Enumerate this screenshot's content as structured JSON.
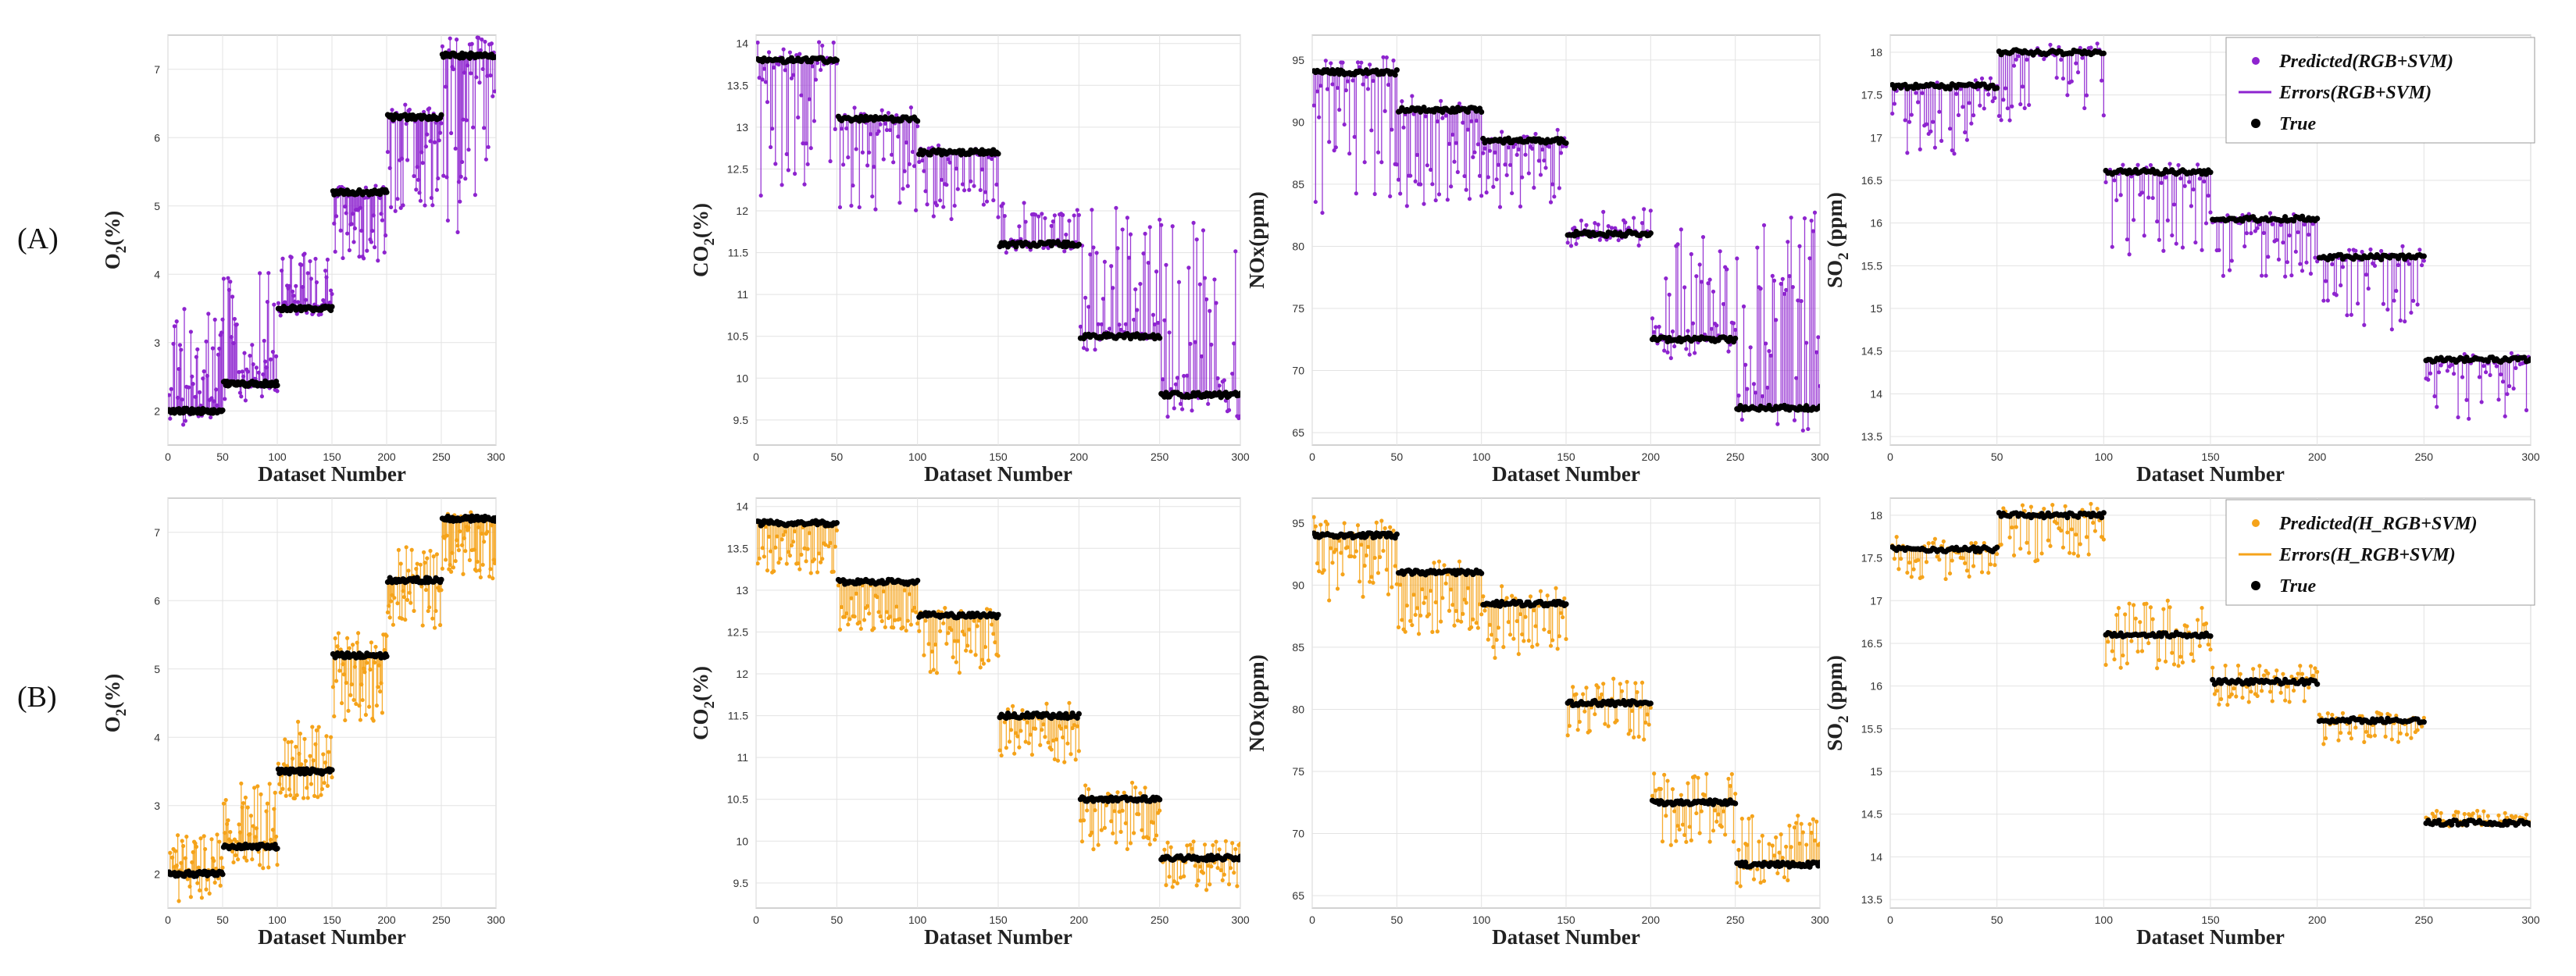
{
  "row_labels": [
    "(A)",
    "(B)"
  ],
  "colors": {
    "rgb_svm": "#8e24cf",
    "h_rgb_svm": "#f5a31a",
    "true": "#000000",
    "grid": "#e3e3e3"
  },
  "legends": {
    "A": [
      "Predicted(RGB+SVM)",
      "Errors(RGB+SVM)",
      "True"
    ],
    "B": [
      "Predicted(H_RGB+SVM)",
      "Errors(H_RGB+SVM)",
      "True"
    ]
  },
  "chart_data": [
    {
      "id": "A-O2",
      "row": "A",
      "type": "scatter",
      "series_color": "rgb_svm",
      "ylabel": "O",
      "ysub": "2",
      "yunit": "(%)",
      "xlabel": "Dataset Number",
      "xlim": [
        0,
        300
      ],
      "ylim": [
        1.5,
        7.5
      ],
      "yticks": [
        2,
        3,
        4,
        5,
        6,
        7
      ],
      "xticks": [
        0,
        50,
        100,
        150,
        200,
        250,
        300
      ],
      "true_levels": [
        2.0,
        2.4,
        3.5,
        5.2,
        6.3,
        7.2
      ],
      "pred_mean": [
        2.7,
        3.1,
        3.9,
        4.6,
        5.5,
        6.0
      ],
      "pred_spread": [
        1.6,
        1.9,
        0.8,
        0.8,
        1.2,
        2.8
      ]
    },
    {
      "id": "A-CO2",
      "row": "A",
      "type": "scatter",
      "series_color": "rgb_svm",
      "ylabel": "CO",
      "ysub": "2",
      "yunit": "(%)",
      "xlabel": "Dataset Number",
      "xlim": [
        0,
        300
      ],
      "ylim": [
        9.2,
        14.1
      ],
      "yticks": [
        9.5,
        10,
        10.5,
        11,
        11.5,
        12,
        12.5,
        13,
        13.5,
        14
      ],
      "xticks": [
        0,
        50,
        100,
        150,
        200,
        250,
        300
      ],
      "true_levels": [
        13.8,
        13.1,
        12.7,
        11.6,
        10.5,
        9.8
      ],
      "pred_mean": [
        13.0,
        12.6,
        12.3,
        11.8,
        11.3,
        10.8
      ],
      "pred_spread": [
        1.8,
        1.2,
        0.8,
        0.6,
        1.5,
        2.2
      ]
    },
    {
      "id": "A-NOx",
      "row": "A",
      "type": "scatter",
      "series_color": "rgb_svm",
      "ylabel": "NOx(ppm)",
      "ysub": "",
      "yunit": "",
      "xlabel": "Dataset Number",
      "xlim": [
        0,
        300
      ],
      "ylim": [
        64,
        97
      ],
      "yticks": [
        65,
        70,
        75,
        80,
        85,
        90,
        95
      ],
      "xticks": [
        0,
        50,
        100,
        150,
        200,
        250,
        300
      ],
      "true_levels": [
        94,
        91,
        88.5,
        81,
        72.5,
        67
      ],
      "pred_mean": [
        88,
        87,
        86,
        81.5,
        76,
        75
      ],
      "pred_spread": [
        11,
        9,
        6,
        3,
        11,
        16
      ]
    },
    {
      "id": "A-SO2",
      "row": "A",
      "type": "scatter",
      "series_color": "rgb_svm",
      "ylabel": "SO",
      "ysub": "2",
      "yunit": " (ppm)",
      "xlabel": "Dataset Number",
      "xlim": [
        0,
        300
      ],
      "ylim": [
        13.4,
        18.2
      ],
      "yticks": [
        13.5,
        14,
        14.5,
        15,
        15.5,
        16,
        16.5,
        17,
        17.5,
        18
      ],
      "xticks": [
        0,
        50,
        100,
        150,
        200,
        250,
        300
      ],
      "true_levels": [
        17.6,
        18.0,
        16.6,
        16.05,
        15.6,
        14.4
      ],
      "pred_mean": [
        17.2,
        17.6,
        16.1,
        15.7,
        15.2,
        14.1
      ],
      "pred_spread": [
        0.8,
        0.9,
        1.0,
        0.7,
        0.9,
        0.8
      ]
    },
    {
      "id": "B-O2",
      "row": "B",
      "type": "scatter",
      "series_color": "h_rgb_svm",
      "ylabel": "O",
      "ysub": "2",
      "yunit": "(%)",
      "xlabel": "Dataset Number",
      "xlim": [
        0,
        300
      ],
      "ylim": [
        1.5,
        7.5
      ],
      "yticks": [
        2,
        3,
        4,
        5,
        6,
        7
      ],
      "xticks": [
        0,
        50,
        100,
        150,
        200,
        250,
        300
      ],
      "true_levels": [
        2.0,
        2.4,
        3.5,
        5.2,
        6.3,
        7.2
      ],
      "pred_mean": [
        2.1,
        2.7,
        3.7,
        4.9,
        6.2,
        6.8
      ],
      "pred_spread": [
        1.0,
        1.3,
        1.2,
        1.4,
        1.2,
        1.0
      ]
    },
    {
      "id": "B-CO2",
      "row": "B",
      "type": "scatter",
      "series_color": "h_rgb_svm",
      "ylabel": "CO",
      "ysub": "2",
      "yunit": "(%)",
      "xlabel": "Dataset Number",
      "xlim": [
        0,
        300
      ],
      "ylim": [
        9.2,
        14.1
      ],
      "yticks": [
        9.5,
        10,
        10.5,
        11,
        11.5,
        12,
        12.5,
        13,
        13.5,
        14
      ],
      "xticks": [
        0,
        50,
        100,
        150,
        200,
        250,
        300
      ],
      "true_levels": [
        13.8,
        13.1,
        12.7,
        11.5,
        10.5,
        9.8
      ],
      "pred_mean": [
        13.5,
        12.8,
        12.4,
        11.3,
        10.3,
        9.7
      ],
      "pred_spread": [
        0.6,
        0.6,
        0.8,
        0.8,
        0.8,
        0.6
      ]
    },
    {
      "id": "B-NOx",
      "row": "B",
      "type": "scatter",
      "series_color": "h_rgb_svm",
      "ylabel": "NOx(ppm)",
      "ysub": "",
      "yunit": "",
      "xlabel": "Dataset Number",
      "xlim": [
        0,
        300
      ],
      "ylim": [
        64,
        97
      ],
      "yticks": [
        65,
        70,
        75,
        80,
        85,
        90,
        95
      ],
      "xticks": [
        0,
        50,
        100,
        150,
        200,
        250,
        300
      ],
      "true_levels": [
        94,
        91,
        88.5,
        80.5,
        72.5,
        67.5
      ],
      "pred_mean": [
        92,
        89,
        87,
        80,
        72,
        68.5
      ],
      "pred_spread": [
        7,
        6,
        6,
        5,
        6,
        6
      ]
    },
    {
      "id": "B-SO2",
      "row": "B",
      "type": "scatter",
      "series_color": "h_rgb_svm",
      "ylabel": "SO",
      "ysub": "2",
      "yunit": " (ppm)",
      "xlabel": "Dataset Number",
      "xlim": [
        0,
        300
      ],
      "ylim": [
        13.4,
        18.2
      ],
      "yticks": [
        13.5,
        14,
        14.5,
        15,
        15.5,
        16,
        16.5,
        17,
        17.5,
        18
      ],
      "xticks": [
        0,
        50,
        100,
        150,
        200,
        250,
        300
      ],
      "true_levels": [
        17.6,
        18.0,
        16.6,
        16.05,
        15.6,
        14.4
      ],
      "pred_mean": [
        17.5,
        17.8,
        16.6,
        16.0,
        15.5,
        14.45
      ],
      "pred_spread": [
        0.5,
        0.7,
        0.8,
        0.5,
        0.4,
        0.2
      ]
    }
  ]
}
